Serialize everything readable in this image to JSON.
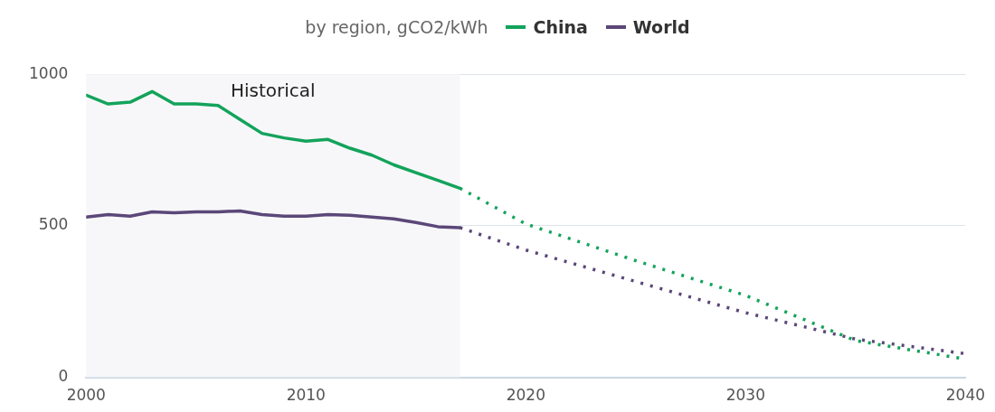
{
  "chart_data": {
    "type": "line",
    "legend_title": "by region, gCO2/kWh",
    "legend": "top",
    "xlim": [
      2000,
      2040
    ],
    "xticks": [
      2000,
      2010,
      2020,
      2030,
      2040
    ],
    "ylim": [
      0,
      1000
    ],
    "yticks": [
      0,
      500,
      1000
    ],
    "grid": "y",
    "marker": "none",
    "bands": [
      {
        "axis": "x",
        "from": 2000,
        "to": 2017,
        "label": "Historical",
        "color": "#f7f7f9"
      }
    ],
    "series": [
      {
        "name": "China",
        "color": "#13a35b",
        "line_style": "solid",
        "x": [
          2000,
          2001,
          2002,
          2003,
          2004,
          2005,
          2006,
          2007,
          2008,
          2009,
          2010,
          2011,
          2012,
          2013,
          2014,
          2015,
          2016,
          2017
        ],
        "values": [
          931,
          902,
          908,
          943,
          902,
          902,
          897,
          851,
          805,
          790,
          779,
          785,
          756,
          733,
          701,
          675,
          650,
          624
        ]
      },
      {
        "name": "World",
        "color": "#5b4779",
        "line_style": "solid",
        "x": [
          2000,
          2001,
          2002,
          2003,
          2004,
          2005,
          2006,
          2007,
          2008,
          2009,
          2010,
          2011,
          2012,
          2013,
          2014,
          2015,
          2016,
          2017
        ],
        "values": [
          529,
          537,
          532,
          546,
          543,
          546,
          546,
          549,
          537,
          532,
          532,
          537,
          535,
          529,
          523,
          511,
          497,
          494
        ]
      },
      {
        "color": "#13a35b",
        "line_style": "dotted",
        "x": [
          2017,
          2020,
          2025,
          2030,
          2035,
          2040
        ],
        "values": [
          624,
          506,
          385,
          270,
          121,
          60
        ]
      },
      {
        "color": "#5b4779",
        "line_style": "dotted",
        "x": [
          2017,
          2020,
          2025,
          2030,
          2035,
          2040
        ],
        "values": [
          494,
          420,
          316,
          213,
          126,
          78
        ]
      }
    ]
  }
}
